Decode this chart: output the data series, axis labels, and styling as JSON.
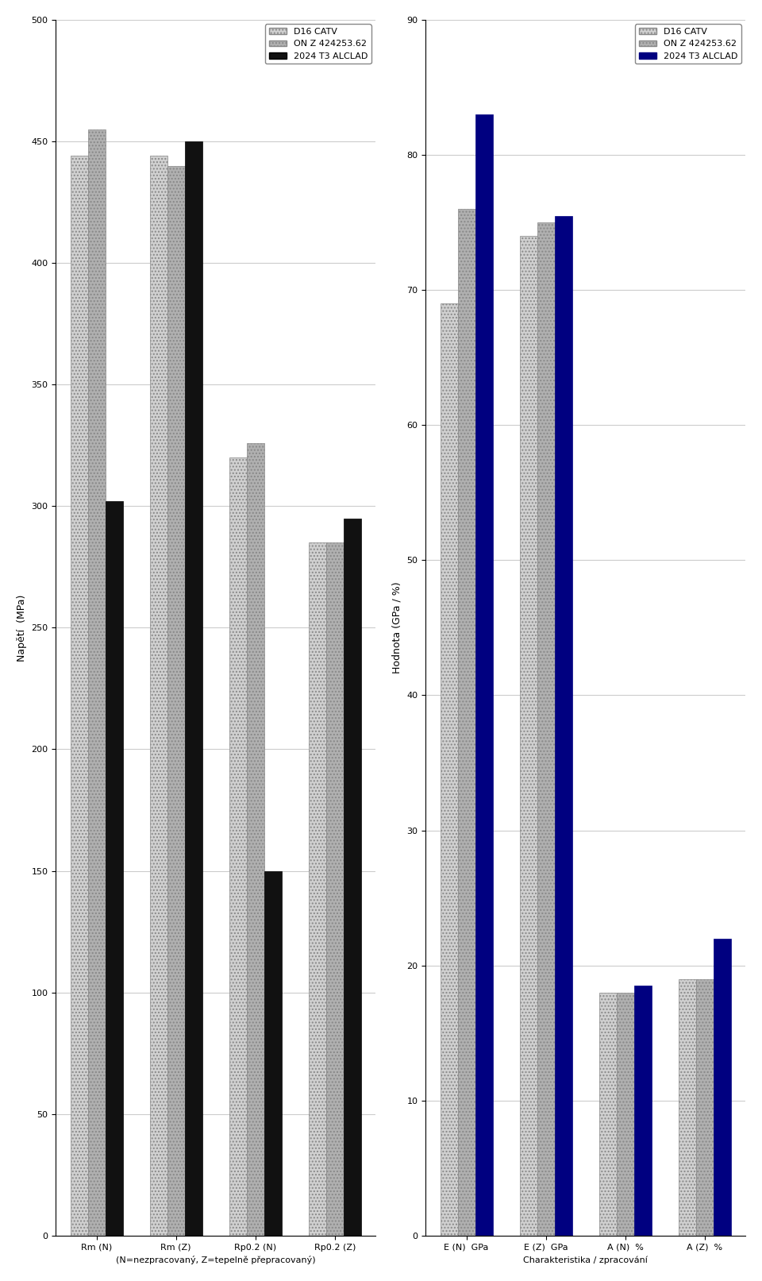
{
  "left_chart": {
    "title": "",
    "ylabel": "Napětí  (MPa)",
    "ylim": [
      0,
      500
    ],
    "yticks": [
      0,
      50,
      100,
      150,
      200,
      250,
      300,
      350,
      400,
      450,
      500
    ],
    "groups": [
      "Rm (N)",
      "Rm (Z)",
      "Rp0.2 (N)",
      "Rp0.2 (Z)"
    ],
    "xlabel_note": "(N=nezpracovaný, Z=tepelně přepracovaný)",
    "series": {
      "D16 CATV": [
        444,
        444,
        320,
        285
      ],
      "ON Z 424253.62": [
        455,
        440,
        326,
        285
      ],
      "2024 T3 ALCLAD": [
        302,
        450,
        150,
        295
      ]
    }
  },
  "right_chart": {
    "title": "",
    "ylabel": "Hodnota (GPa / %)",
    "ylim": [
      0,
      90
    ],
    "yticks": [
      0,
      10,
      20,
      30,
      40,
      50,
      60,
      70,
      80,
      90
    ],
    "groups": [
      "E (N)  GPa",
      "E (Z)  GPa",
      "A (N)  %",
      "A (Z)  %"
    ],
    "xlabel_note": "Charakteristika / zpracování",
    "series": {
      "D16 CATV": [
        69,
        74,
        18,
        19
      ],
      "ON Z 424253.62": [
        76,
        75,
        18,
        19
      ],
      "2024 T3 ALCLAD": [
        83,
        75.5,
        18.5,
        22
      ]
    }
  },
  "colors": {
    "D16 CATV": "#d0d0d0",
    "ON Z 424253.62": "#b0b0b0",
    "2024 T3 ALCLAD": "#111111"
  },
  "legend_items": [
    "D16 CATV",
    "ON Z 424253.62",
    "2024 T3 ALCLAD"
  ],
  "bar_width": 0.22,
  "background_color": "#ffffff",
  "grid_color": "#cccccc",
  "font_size_axis": 9,
  "font_size_legend": 8,
  "font_size_tick": 8
}
